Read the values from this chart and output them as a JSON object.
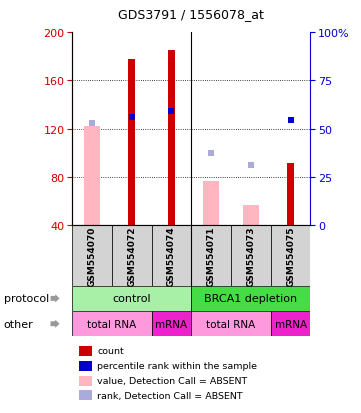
{
  "title": "GDS3791 / 1556078_at",
  "samples": [
    "GSM554070",
    "GSM554072",
    "GSM554074",
    "GSM554071",
    "GSM554073",
    "GSM554075"
  ],
  "left_ylim": [
    40,
    200
  ],
  "left_yticks": [
    40,
    80,
    120,
    160,
    200
  ],
  "right_ylim": [
    0,
    100
  ],
  "right_yticks": [
    0,
    25,
    50,
    75,
    100
  ],
  "right_yticklabels": [
    "0",
    "25",
    "50",
    "75",
    "100%"
  ],
  "red_bars": [
    null,
    178,
    185,
    null,
    null,
    92
  ],
  "pink_bars": [
    122,
    null,
    null,
    77,
    57,
    null
  ],
  "blue_squares": [
    null,
    130,
    135,
    null,
    null,
    127
  ],
  "light_blue_squares": [
    125,
    null,
    null,
    100,
    90,
    null
  ],
  "red_bar_width": 0.18,
  "pink_bar_width": 0.4,
  "red_color": "#CC0000",
  "pink_color": "#FFB6C1",
  "blue_color": "#0000CC",
  "light_blue_color": "#AAAADD",
  "left_axis_color": "#CC0000",
  "right_axis_color": "#0000CC",
  "bg_gray": "#D3D3D3",
  "protocol_light_green": "#A8F0A8",
  "protocol_dark_green": "#44DD44",
  "other_light_pink": "#FF99DD",
  "other_dark_pink": "#EE22CC",
  "legend_items": [
    {
      "label": "count",
      "color": "#CC0000"
    },
    {
      "label": "percentile rank within the sample",
      "color": "#0000CC"
    },
    {
      "label": "value, Detection Call = ABSENT",
      "color": "#FFB6C1"
    },
    {
      "label": "rank, Detection Call = ABSENT",
      "color": "#AAAADD"
    }
  ]
}
